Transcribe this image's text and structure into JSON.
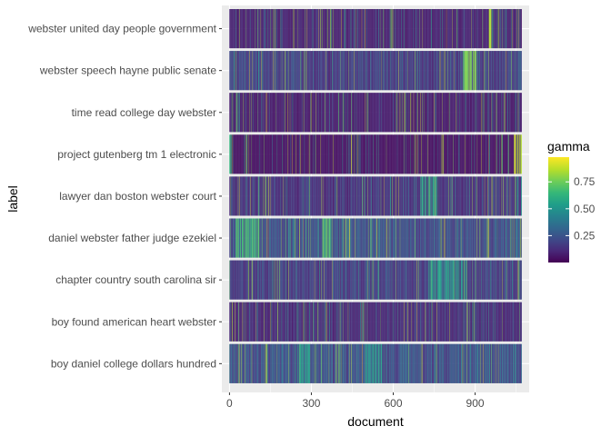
{
  "chart_data": {
    "type": "heatmap",
    "title": "",
    "xlabel": "document",
    "ylabel": "label",
    "xlim": [
      -28,
      1098
    ],
    "x_ticks": [
      0,
      300,
      600,
      900
    ],
    "x_tick_labels": [
      "0",
      "300",
      "600",
      "900"
    ],
    "n_documents": 1071,
    "grid": true,
    "legend_position": "right",
    "legend": {
      "title": "gamma",
      "breaks": [
        0.25,
        0.5,
        0.75
      ],
      "labels": [
        "0.25",
        "0.50",
        "0.75"
      ],
      "range": [
        0.0,
        0.98
      ]
    },
    "palette": [
      "#440154",
      "#482878",
      "#3e4a89",
      "#31688e",
      "#26828e",
      "#1f9e89",
      "#35b779",
      "#6ece58",
      "#b5de2b",
      "#fde725"
    ],
    "rows": [
      {
        "label": "webster united day people government",
        "mean_gamma": 0.12,
        "hot_spots": [
          {
            "range": [
              950,
              960
            ],
            "value": 0.95
          },
          {
            "range": [
              985,
              990
            ],
            "value": 0.95
          }
        ]
      },
      {
        "label": "webster speech hayne public senate",
        "mean_gamma": 0.22,
        "hot_spots": [
          {
            "range": [
              855,
              905
            ],
            "value": 0.85
          }
        ]
      },
      {
        "label": "time read college day webster",
        "mean_gamma": 0.1,
        "hot_spots": []
      },
      {
        "label": "project gutenberg tm 1 electronic",
        "mean_gamma": 0.06,
        "hot_spots": [
          {
            "range": [
              0,
              8
            ],
            "value": 0.7
          },
          {
            "range": [
              1040,
              1071
            ],
            "value": 0.98
          }
        ]
      },
      {
        "label": "lawyer dan boston webster court",
        "mean_gamma": 0.18,
        "hot_spots": [
          {
            "range": [
              700,
              760
            ],
            "value": 0.65
          }
        ]
      },
      {
        "label": "daniel webster father judge ezekiel",
        "mean_gamma": 0.3,
        "hot_spots": [
          {
            "range": [
              20,
              110
            ],
            "value": 0.75
          },
          {
            "range": [
              340,
              370
            ],
            "value": 0.8
          }
        ]
      },
      {
        "label": "chapter country south carolina sir",
        "mean_gamma": 0.22,
        "hot_spots": [
          {
            "range": [
              730,
              870
            ],
            "value": 0.6
          }
        ]
      },
      {
        "label": "boy found american heart webster",
        "mean_gamma": 0.15,
        "hot_spots": []
      },
      {
        "label": "boy daniel college dollars hundred",
        "mean_gamma": 0.32,
        "hot_spots": [
          {
            "range": [
              250,
              300
            ],
            "value": 0.6
          },
          {
            "range": [
              500,
              560
            ],
            "value": 0.6
          }
        ]
      }
    ]
  }
}
